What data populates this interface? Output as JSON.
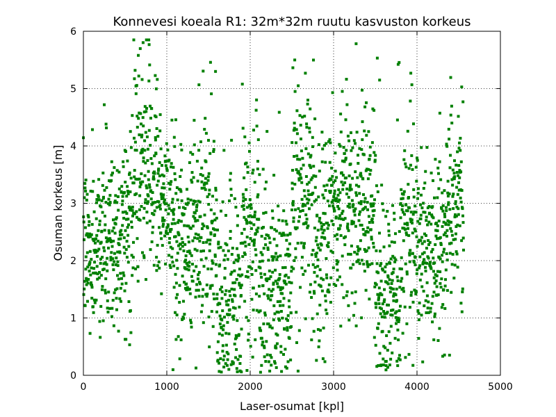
{
  "chart_data": {
    "type": "scatter",
    "title": "Konnevesi koeala R1: 32m*32m ruutu kasvuston korkeus",
    "xlabel": "Laser-osumat [kpl]",
    "ylabel": "Osuman korkeus [m]",
    "xlim": [
      0,
      5000
    ],
    "ylim": [
      0,
      6
    ],
    "xticks": [
      "0",
      "1000",
      "2000",
      "3000",
      "4000",
      "5000"
    ],
    "yticks": [
      "0",
      "1",
      "2",
      "3",
      "4",
      "5",
      "6"
    ],
    "grid": true,
    "marker": "square",
    "color": "#008000",
    "n_points": 4560,
    "profile_note": "points approximated: y values drawn from segment-wise distributions estimated from the image",
    "segments": [
      {
        "x": [
          0,
          150
        ],
        "mean": 2.2,
        "sd": 0.7
      },
      {
        "x": [
          150,
          450
        ],
        "mean": 2.4,
        "sd": 0.8
      },
      {
        "x": [
          450,
          600
        ],
        "mean": 2.6,
        "sd": 0.8
      },
      {
        "x": [
          600,
          900
        ],
        "mean": 3.6,
        "sd": 0.9
      },
      {
        "x": [
          900,
          1100
        ],
        "mean": 2.9,
        "sd": 0.7
      },
      {
        "x": [
          1100,
          1300
        ],
        "mean": 2.3,
        "sd": 0.8
      },
      {
        "x": [
          1300,
          1600
        ],
        "mean": 2.6,
        "sd": 0.9
      },
      {
        "x": [
          1600,
          1900
        ],
        "mean": 1.3,
        "sd": 0.9
      },
      {
        "x": [
          1900,
          2100
        ],
        "mean": 2.6,
        "sd": 0.9
      },
      {
        "x": [
          2100,
          2500
        ],
        "mean": 1.5,
        "sd": 0.9
      },
      {
        "x": [
          2500,
          2750
        ],
        "mean": 3.2,
        "sd": 1.0
      },
      {
        "x": [
          2750,
          2950
        ],
        "mean": 2.4,
        "sd": 1.0
      },
      {
        "x": [
          2950,
          3200
        ],
        "mean": 3.0,
        "sd": 0.9
      },
      {
        "x": [
          3200,
          3500
        ],
        "mean": 2.9,
        "sd": 0.9
      },
      {
        "x": [
          3500,
          3800
        ],
        "mean": 1.4,
        "sd": 0.8
      },
      {
        "x": [
          3800,
          4100
        ],
        "mean": 2.4,
        "sd": 0.9
      },
      {
        "x": [
          4100,
          4350
        ],
        "mean": 2.3,
        "sd": 0.8
      },
      {
        "x": [
          4350,
          4560
        ],
        "mean": 3.0,
        "sd": 0.8
      }
    ]
  }
}
